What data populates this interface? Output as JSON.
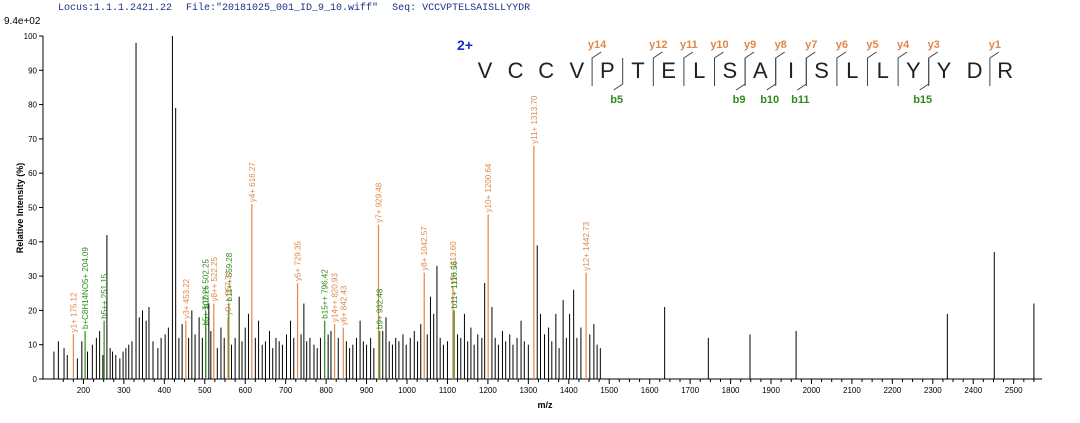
{
  "header": {
    "locus": "Locus:1.1.1.2421.22",
    "file": "File:\"20181025_001_ID_9_10.wiff\"",
    "seq": "Seq: VCCVPTELSAISLLYYDR"
  },
  "chart_data": {
    "type": "bar",
    "ymax_label": "9.4e+02",
    "ylabel": "Relative Intensity (%)",
    "xlabel": "m/z",
    "xlim": [
      100,
      2570
    ],
    "ylim": [
      0,
      100
    ],
    "xticks": [
      200,
      300,
      400,
      500,
      600,
      700,
      800,
      900,
      1000,
      1100,
      1200,
      1300,
      1400,
      1500,
      1600,
      1700,
      1800,
      1900,
      2000,
      2100,
      2200,
      2300,
      2400,
      2500
    ],
    "yticks": [
      0,
      10,
      20,
      30,
      40,
      50,
      60,
      70,
      80,
      90,
      100
    ],
    "colors": {
      "y": "#e0874a",
      "b": "#2e8b1e",
      "other": "#000000",
      "charge": "#1a2bd0"
    },
    "annotated_peaks": [
      {
        "mz": 175.12,
        "intensity": 13,
        "ion": "y",
        "label": "y1+ 175.12"
      },
      {
        "mz": 204.09,
        "intensity": 14,
        "ion": "b",
        "label": "b+C8H14NO5+ 204.09"
      },
      {
        "mz": 251.15,
        "intensity": 17,
        "ion": "b",
        "label": "b5++ 251.15"
      },
      {
        "mz": 453.22,
        "intensity": 17,
        "ion": "y",
        "label": "y3+ 453.22"
      },
      {
        "mz": 502.25,
        "intensity": 15,
        "ion": "b",
        "label": "b5+ 502.25"
      },
      {
        "mz": 502.25,
        "intensity": 20,
        "ion": "b",
        "label": "b10++ 502.25"
      },
      {
        "mz": 522.25,
        "intensity": 22,
        "ion": "y",
        "label": "y8++ 522.25"
      },
      {
        "mz": 559.28,
        "intensity": 22,
        "ion": "b",
        "label": "b11++ 559.28"
      },
      {
        "mz": 557.34,
        "intensity": 18,
        "ion": "y",
        "label": "y9++ 557.34"
      },
      {
        "mz": 616.27,
        "intensity": 51,
        "ion": "y",
        "label": "y4+ 616.27"
      },
      {
        "mz": 729.35,
        "intensity": 28,
        "ion": "y",
        "label": "y5+ 729.35"
      },
      {
        "mz": 796.42,
        "intensity": 17,
        "ion": "b",
        "label": "b15++ 796.42"
      },
      {
        "mz": 820.93,
        "intensity": 16,
        "ion": "y",
        "label": "y14++ 820.93"
      },
      {
        "mz": 842.43,
        "intensity": 15,
        "ion": "y",
        "label": "y6+ 842.43"
      },
      {
        "mz": 929.48,
        "intensity": 45,
        "ion": "y",
        "label": "y7+ 929.48"
      },
      {
        "mz": 932.48,
        "intensity": 14,
        "ion": "b",
        "label": "b9+ 932.48"
      },
      {
        "mz": 1042.57,
        "intensity": 31,
        "ion": "y",
        "label": "y8+ 1042.57"
      },
      {
        "mz": 1113.6,
        "intensity": 27,
        "ion": "y",
        "label": "y9+ 1113.60"
      },
      {
        "mz": 1116.56,
        "intensity": 20,
        "ion": "b",
        "label": "b11+ 1116.56"
      },
      {
        "mz": 1200.64,
        "intensity": 48,
        "ion": "y",
        "label": "y10+ 1200.64"
      },
      {
        "mz": 1313.7,
        "intensity": 68,
        "ion": "y",
        "label": "y11+ 1313.70"
      },
      {
        "mz": 1442.73,
        "intensity": 31,
        "ion": "y",
        "label": "y12+ 1442.73"
      }
    ],
    "other_peaks": [
      [
        127,
        8
      ],
      [
        138,
        11
      ],
      [
        152,
        9
      ],
      [
        160,
        7
      ],
      [
        185,
        6
      ],
      [
        196,
        11
      ],
      [
        210,
        8
      ],
      [
        222,
        10
      ],
      [
        232,
        12
      ],
      [
        240,
        14
      ],
      [
        248,
        7
      ],
      [
        258,
        42
      ],
      [
        266,
        9
      ],
      [
        272,
        8
      ],
      [
        280,
        7
      ],
      [
        290,
        6
      ],
      [
        298,
        8
      ],
      [
        305,
        9
      ],
      [
        312,
        10
      ],
      [
        320,
        11
      ],
      [
        330,
        98
      ],
      [
        338,
        18
      ],
      [
        346,
        20
      ],
      [
        355,
        17
      ],
      [
        362,
        21
      ],
      [
        372,
        11
      ],
      [
        384,
        9
      ],
      [
        392,
        12
      ],
      [
        402,
        13
      ],
      [
        410,
        15
      ],
      [
        420,
        100
      ],
      [
        428,
        79
      ],
      [
        436,
        12
      ],
      [
        444,
        16
      ],
      [
        460,
        12
      ],
      [
        468,
        20
      ],
      [
        476,
        13
      ],
      [
        486,
        18
      ],
      [
        494,
        12
      ],
      [
        510,
        22
      ],
      [
        515,
        14
      ],
      [
        531,
        9
      ],
      [
        540,
        15
      ],
      [
        548,
        12
      ],
      [
        566,
        10
      ],
      [
        575,
        12
      ],
      [
        585,
        24
      ],
      [
        592,
        11
      ],
      [
        600,
        15
      ],
      [
        608,
        19
      ],
      [
        625,
        12
      ],
      [
        633,
        17
      ],
      [
        642,
        10
      ],
      [
        650,
        11
      ],
      [
        660,
        14
      ],
      [
        668,
        9
      ],
      [
        676,
        12
      ],
      [
        684,
        11
      ],
      [
        692,
        10
      ],
      [
        702,
        13
      ],
      [
        712,
        17
      ],
      [
        720,
        12
      ],
      [
        738,
        13
      ],
      [
        745,
        22
      ],
      [
        752,
        11
      ],
      [
        760,
        12
      ],
      [
        770,
        10
      ],
      [
        778,
        9
      ],
      [
        786,
        12
      ],
      [
        805,
        13
      ],
      [
        812,
        14
      ],
      [
        830,
        12
      ],
      [
        850,
        11
      ],
      [
        858,
        9
      ],
      [
        866,
        10
      ],
      [
        875,
        12
      ],
      [
        884,
        17
      ],
      [
        892,
        11
      ],
      [
        900,
        10
      ],
      [
        910,
        12
      ],
      [
        918,
        9
      ],
      [
        940,
        14
      ],
      [
        948,
        18
      ],
      [
        956,
        11
      ],
      [
        964,
        10
      ],
      [
        972,
        12
      ],
      [
        980,
        11
      ],
      [
        990,
        13
      ],
      [
        998,
        10
      ],
      [
        1008,
        12
      ],
      [
        1018,
        14
      ],
      [
        1026,
        11
      ],
      [
        1034,
        16
      ],
      [
        1050,
        13
      ],
      [
        1058,
        24
      ],
      [
        1066,
        19
      ],
      [
        1074,
        33
      ],
      [
        1082,
        12
      ],
      [
        1090,
        10
      ],
      [
        1100,
        11
      ],
      [
        1125,
        13
      ],
      [
        1133,
        12
      ],
      [
        1142,
        19
      ],
      [
        1150,
        11
      ],
      [
        1158,
        15
      ],
      [
        1166,
        10
      ],
      [
        1175,
        13
      ],
      [
        1185,
        12
      ],
      [
        1192,
        28
      ],
      [
        1210,
        21
      ],
      [
        1218,
        12
      ],
      [
        1226,
        10
      ],
      [
        1236,
        14
      ],
      [
        1244,
        11
      ],
      [
        1254,
        13
      ],
      [
        1262,
        10
      ],
      [
        1272,
        12
      ],
      [
        1282,
        17
      ],
      [
        1290,
        11
      ],
      [
        1300,
        10
      ],
      [
        1322,
        39
      ],
      [
        1330,
        19
      ],
      [
        1340,
        13
      ],
      [
        1350,
        15
      ],
      [
        1358,
        11
      ],
      [
        1368,
        19
      ],
      [
        1376,
        9
      ],
      [
        1386,
        23
      ],
      [
        1394,
        12
      ],
      [
        1402,
        19
      ],
      [
        1412,
        26
      ],
      [
        1420,
        12
      ],
      [
        1430,
        15
      ],
      [
        1452,
        13
      ],
      [
        1462,
        16
      ],
      [
        1470,
        10
      ],
      [
        1478,
        9
      ],
      [
        1637,
        21
      ],
      [
        1745,
        12
      ],
      [
        1848,
        13
      ],
      [
        1962,
        14
      ],
      [
        2336,
        19
      ],
      [
        2452,
        37
      ],
      [
        2550,
        22
      ]
    ],
    "sequence": {
      "charge": "2+",
      "residues": [
        "V",
        "C",
        "C",
        "V",
        "P",
        "T",
        "E",
        "L",
        "S",
        "A",
        "I",
        "S",
        "L",
        "L",
        "Y",
        "Y",
        "D",
        "R"
      ],
      "y_ions": [
        {
          "label": "y14",
          "after": 4
        },
        {
          "label": "y12",
          "after": 6
        },
        {
          "label": "y11",
          "after": 7
        },
        {
          "label": "y10",
          "after": 8
        },
        {
          "label": "y9",
          "after": 9
        },
        {
          "label": "y8",
          "after": 10
        },
        {
          "label": "y7",
          "after": 11
        },
        {
          "label": "y6",
          "after": 12
        },
        {
          "label": "y5",
          "after": 13
        },
        {
          "label": "y4",
          "after": 14
        },
        {
          "label": "y3",
          "after": 15
        },
        {
          "label": "y1",
          "after": 17
        }
      ],
      "b_ions": [
        {
          "label": "b5",
          "after": 5
        },
        {
          "label": "b9",
          "after": 9
        },
        {
          "label": "b10",
          "after": 10
        },
        {
          "label": "b11",
          "after": 11
        },
        {
          "label": "b15",
          "after": 15
        }
      ]
    }
  }
}
